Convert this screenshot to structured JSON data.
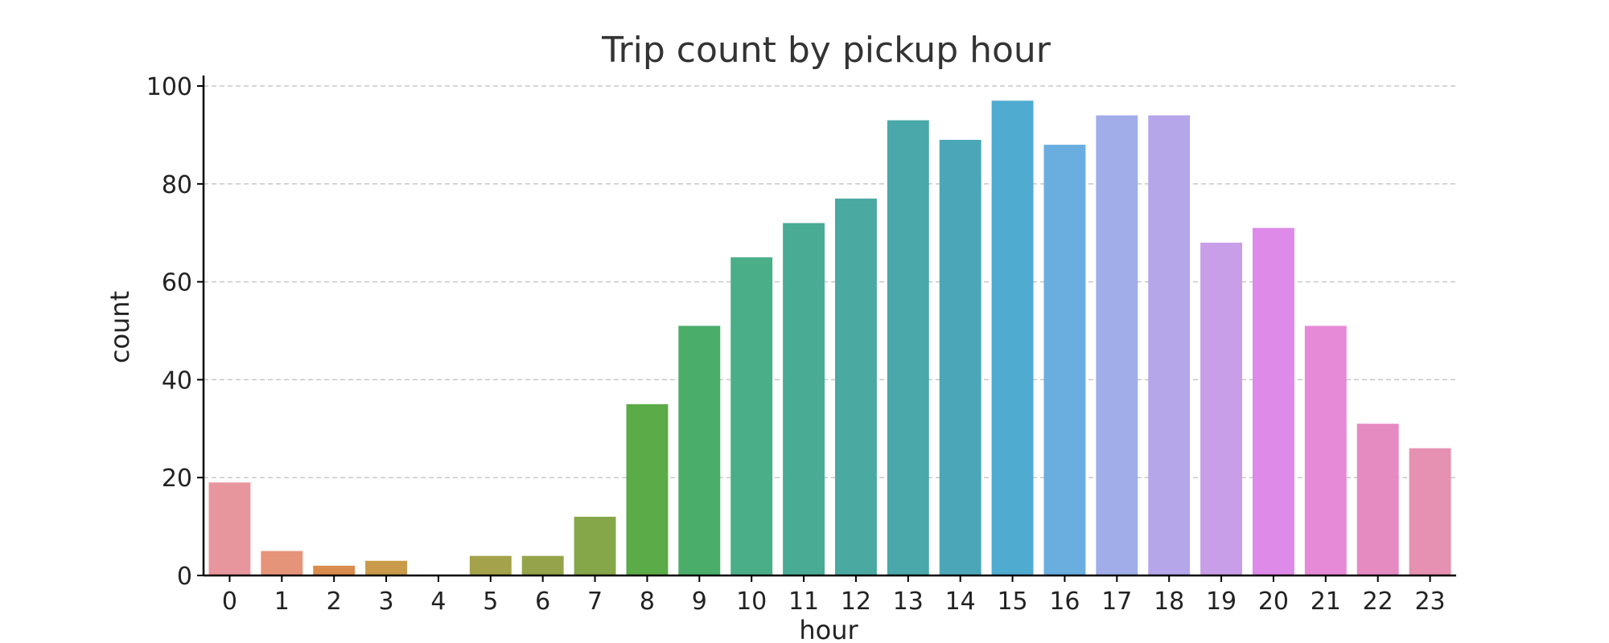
{
  "chart_data": {
    "type": "bar",
    "title": "Trip count by pickup hour",
    "xlabel": "hour",
    "ylabel": "count",
    "categories": [
      "0",
      "1",
      "2",
      "3",
      "4",
      "5",
      "6",
      "7",
      "8",
      "9",
      "10",
      "11",
      "12",
      "13",
      "14",
      "15",
      "16",
      "17",
      "18",
      "19",
      "20",
      "21",
      "22",
      "23"
    ],
    "values": [
      19,
      5,
      2,
      3,
      0,
      4,
      4,
      12,
      35,
      51,
      65,
      72,
      77,
      93,
      89,
      97,
      88,
      94,
      94,
      68,
      71,
      51,
      31,
      26
    ],
    "ylim": [
      0,
      100
    ],
    "yticks": [
      "0",
      "20",
      "40",
      "60",
      "80",
      "100"
    ],
    "grid": "y-dashed",
    "colors": [
      "#e8969e",
      "#e5947a",
      "#d98c4e",
      "#c89a4a",
      "#b9a04a",
      "#a4a24a",
      "#95a44a",
      "#86a64a",
      "#5bab48",
      "#4aad6a",
      "#4aae88",
      "#4aab95",
      "#4aa9a0",
      "#4aa8aa",
      "#4ba7b8",
      "#4fabd0",
      "#6aaee0",
      "#a0ade8",
      "#b5a6ea",
      "#c89ee8",
      "#dd8ae8",
      "#e68ad8",
      "#e68ac2",
      "#e690b2"
    ]
  }
}
